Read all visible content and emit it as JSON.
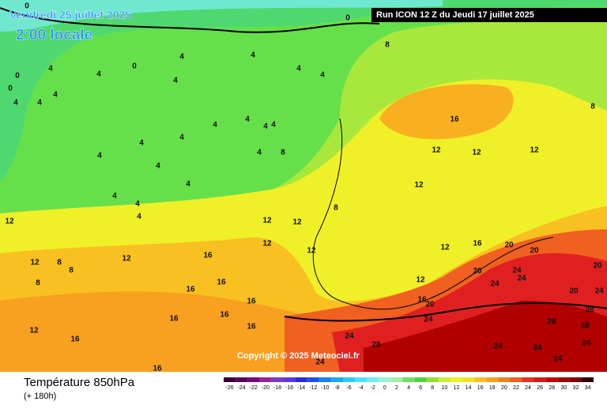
{
  "header": {
    "date": "Vendredi 25 juillet 2025",
    "time": "2:00 locale",
    "run": "Run ICON 12 Z du Jeudi 17 juillet 2025"
  },
  "copyright": "Copyright © 2025 Meteociel.fr",
  "footer": {
    "title": "Température 850hPa",
    "lead": "(+ 180h)"
  },
  "map_labels": [
    0,
    0,
    0,
    0,
    0,
    4,
    4,
    4,
    4,
    4,
    4,
    4,
    4,
    4,
    4,
    4,
    4,
    4,
    4,
    4,
    4,
    4,
    4,
    4,
    4,
    4,
    4,
    4,
    8,
    8,
    8,
    8,
    16,
    12,
    12,
    12,
    12,
    12,
    12,
    12,
    12,
    12,
    12,
    12,
    12,
    16,
    16,
    16,
    16,
    16,
    16,
    16,
    16,
    16,
    16,
    16,
    20,
    20,
    20,
    20,
    20,
    20,
    24,
    24,
    24,
    24,
    24,
    24,
    24,
    24,
    24,
    24,
    24,
    28,
    28,
    28,
    28,
    12,
    8,
    8,
    8,
    12
  ],
  "scale": {
    "values": [
      -26,
      -24,
      -22,
      -20,
      -18,
      -16,
      -14,
      -12,
      -10,
      -8,
      -6,
      -4,
      -2,
      0,
      2,
      4,
      6,
      8,
      10,
      12,
      14,
      16,
      18,
      20,
      22,
      24,
      26,
      28,
      30,
      32,
      34
    ],
    "colors": [
      "#3a003a",
      "#5a005a",
      "#7a007a",
      "#9a209a",
      "#7a3ac8",
      "#5a3ae0",
      "#2a2ae0",
      "#1a50f0",
      "#1a80ff",
      "#20a8ff",
      "#30c8ff",
      "#50e0ff",
      "#70f0f0",
      "#90f8d0",
      "#a0f0a0",
      "#70e060",
      "#50d040",
      "#90e030",
      "#c8f030",
      "#f0f020",
      "#f8e020",
      "#f8c020",
      "#f8a020",
      "#f08020",
      "#f06020",
      "#e83020",
      "#d81818",
      "#c00000",
      "#a00000",
      "#800000",
      "#300000"
    ]
  }
}
